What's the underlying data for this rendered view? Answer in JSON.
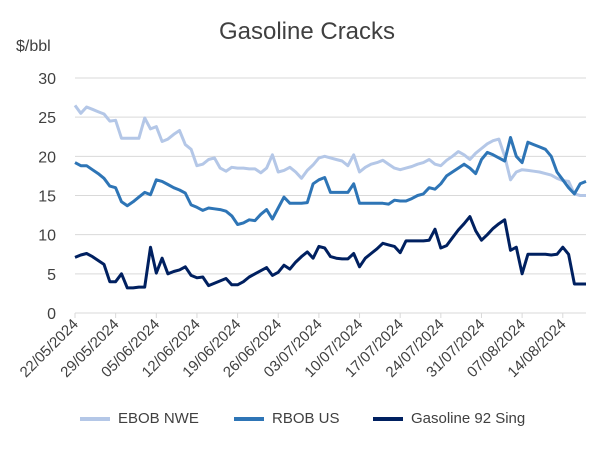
{
  "chart_data": {
    "type": "line",
    "title": "Gasoline Cracks",
    "ylabel": "$/bbl",
    "xlabel": "",
    "ylim": [
      0,
      30
    ],
    "yticks": [
      0,
      5,
      10,
      15,
      20,
      25,
      30
    ],
    "grid": true,
    "legend_position": "bottom",
    "x_tick_labels": [
      "22/05/2024",
      "29/05/2024",
      "05/06/2024",
      "12/06/2024",
      "19/06/2024",
      "26/06/2024",
      "03/07/2024",
      "10/07/2024",
      "17/07/2024",
      "24/07/2024",
      "31/07/2024",
      "07/08/2024",
      "14/08/2024"
    ],
    "x_tick_days": [
      0,
      7,
      14,
      21,
      28,
      35,
      42,
      49,
      56,
      63,
      70,
      77,
      84
    ],
    "x_max_day": 88,
    "series": [
      {
        "name": "EBOB NWE",
        "color": "#b4c7e7",
        "x": [
          0,
          1,
          2,
          3,
          4,
          5,
          6,
          7,
          8,
          9,
          10,
          11,
          12,
          13,
          14,
          15,
          16,
          17,
          18,
          19,
          20,
          21,
          22,
          23,
          24,
          25,
          26,
          27,
          28,
          29,
          30,
          31,
          32,
          33,
          34,
          35,
          36,
          37,
          38,
          39,
          40,
          41,
          42,
          43,
          44,
          45,
          46,
          47,
          48,
          49,
          50,
          51,
          52,
          53,
          54,
          55,
          56,
          57,
          58,
          59,
          60,
          61,
          62,
          63,
          64,
          65,
          66,
          67,
          68,
          69,
          70,
          71,
          72,
          73,
          74,
          75,
          76,
          77,
          78,
          79,
          80,
          81,
          82,
          83,
          84,
          85,
          86,
          87,
          88
        ],
        "values": [
          26.5,
          25.5,
          26.3,
          26.0,
          25.7,
          25.4,
          24.5,
          24.6,
          22.3,
          22.3,
          22.3,
          22.3,
          24.9,
          23.5,
          23.8,
          21.9,
          22.2,
          22.8,
          23.3,
          21.5,
          20.9,
          18.8,
          19.0,
          19.6,
          19.8,
          18.5,
          18.1,
          18.6,
          18.5,
          18.5,
          18.4,
          18.4,
          17.9,
          18.5,
          20.2,
          18.0,
          18.2,
          18.6,
          18.0,
          17.2,
          18.2,
          18.9,
          19.8,
          20.0,
          19.8,
          19.6,
          19.4,
          18.8,
          20.2,
          18.0,
          18.6,
          19.0,
          19.2,
          19.5,
          19.0,
          18.5,
          18.3,
          18.5,
          18.7,
          19.0,
          19.2,
          19.6,
          19.0,
          18.8,
          19.5,
          20.0,
          20.6,
          20.2,
          19.6,
          20.4,
          21.0,
          21.6,
          22.0,
          22.2,
          20.0,
          17.0,
          18.0,
          18.3,
          18.2,
          18.1,
          18.0,
          17.8,
          17.6,
          17.2,
          16.9,
          16.8,
          15.2,
          15.0,
          15.0
        ]
      },
      {
        "name": "RBOB US",
        "color": "#2e75b6",
        "x": [
          0,
          1,
          2,
          3,
          4,
          5,
          6,
          7,
          8,
          9,
          10,
          11,
          12,
          13,
          14,
          15,
          16,
          17,
          18,
          19,
          20,
          21,
          22,
          23,
          24,
          25,
          26,
          27,
          28,
          29,
          30,
          31,
          32,
          33,
          34,
          35,
          36,
          37,
          38,
          39,
          40,
          41,
          42,
          43,
          44,
          45,
          46,
          47,
          48,
          49,
          50,
          51,
          52,
          53,
          54,
          55,
          56,
          57,
          58,
          59,
          60,
          61,
          62,
          63,
          64,
          65,
          66,
          67,
          68,
          69,
          70,
          71,
          72,
          73,
          74,
          75,
          76,
          77,
          78,
          79,
          80,
          81,
          82,
          83,
          84,
          85,
          86,
          87,
          88
        ],
        "values": [
          19.2,
          18.8,
          18.8,
          18.3,
          17.8,
          17.2,
          16.2,
          16.0,
          14.2,
          13.7,
          14.2,
          14.8,
          15.4,
          15.1,
          17.0,
          16.8,
          16.4,
          16.0,
          15.7,
          15.3,
          13.8,
          13.5,
          13.1,
          13.4,
          13.3,
          13.2,
          13.0,
          12.4,
          11.3,
          11.5,
          11.9,
          11.8,
          12.6,
          13.2,
          12.0,
          13.4,
          14.8,
          14.0,
          14.0,
          14.0,
          14.1,
          16.5,
          17.0,
          17.3,
          15.4,
          15.4,
          15.4,
          15.4,
          16.5,
          14.0,
          14.0,
          14.0,
          14.0,
          14.0,
          13.9,
          14.4,
          14.3,
          14.3,
          14.6,
          15.0,
          15.2,
          16.0,
          15.8,
          16.5,
          17.5,
          18.0,
          18.5,
          19.0,
          18.5,
          17.8,
          19.6,
          20.5,
          20.2,
          19.8,
          19.4,
          22.4,
          20.0,
          19.2,
          21.8,
          21.5,
          21.2,
          20.9,
          20.0,
          18.0,
          17.0,
          16.0,
          15.2,
          16.5,
          16.8
        ]
      },
      {
        "name": "Gasoline 92 Sing",
        "color": "#002060",
        "x": [
          0,
          1,
          2,
          3,
          4,
          5,
          6,
          7,
          8,
          9,
          10,
          11,
          12,
          13,
          14,
          15,
          16,
          17,
          18,
          19,
          20,
          21,
          22,
          23,
          24,
          25,
          26,
          27,
          28,
          29,
          30,
          31,
          32,
          33,
          34,
          35,
          36,
          37,
          38,
          39,
          40,
          41,
          42,
          43,
          44,
          45,
          46,
          47,
          48,
          49,
          50,
          51,
          52,
          53,
          54,
          55,
          56,
          57,
          58,
          59,
          60,
          61,
          62,
          63,
          64,
          65,
          66,
          67,
          68,
          69,
          70,
          71,
          72,
          73,
          74,
          75,
          76,
          77,
          78,
          79,
          80,
          81,
          82,
          83,
          84,
          85,
          86,
          87,
          88
        ],
        "values": [
          7.1,
          7.4,
          7.6,
          7.2,
          6.7,
          6.2,
          4.0,
          4.0,
          5.0,
          3.2,
          3.2,
          3.3,
          3.3,
          8.4,
          5.1,
          7.0,
          5.0,
          5.3,
          5.5,
          5.9,
          4.8,
          4.5,
          4.6,
          3.5,
          3.8,
          4.1,
          4.4,
          3.6,
          3.6,
          4.0,
          4.6,
          5.0,
          5.4,
          5.8,
          4.8,
          5.2,
          6.1,
          5.6,
          6.5,
          7.2,
          7.8,
          7.0,
          8.5,
          8.3,
          7.2,
          7.0,
          6.9,
          6.9,
          7.6,
          5.9,
          7.0,
          7.6,
          8.2,
          8.9,
          8.7,
          8.5,
          7.7,
          9.2,
          9.2,
          9.2,
          9.2,
          9.3,
          10.7,
          8.3,
          8.6,
          9.6,
          10.6,
          11.4,
          12.3,
          10.5,
          9.3,
          10.0,
          10.8,
          11.4,
          11.9,
          8.0,
          8.4,
          5.0,
          7.5,
          7.5,
          7.5,
          7.5,
          7.4,
          7.5,
          8.4,
          7.5,
          3.7,
          3.7,
          3.7
        ]
      }
    ]
  }
}
